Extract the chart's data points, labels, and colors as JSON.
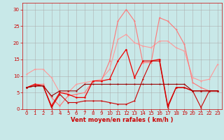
{
  "background_color": "#c8e8e8",
  "grid_color": "#aaaaaa",
  "xlabel": "Vent moyen/en rafales ( km/h )",
  "xlabel_color": "#cc0000",
  "xlabel_fontsize": 6,
  "tick_color": "#cc0000",
  "tick_fontsize": 5,
  "ylim": [
    0,
    32
  ],
  "xlim": [
    -0.5,
    23.5
  ],
  "yticks": [
    0,
    5,
    10,
    15,
    20,
    25,
    30
  ],
  "xticks": [
    0,
    1,
    2,
    3,
    4,
    5,
    6,
    7,
    8,
    9,
    10,
    11,
    12,
    13,
    14,
    15,
    16,
    17,
    18,
    19,
    20,
    21,
    22,
    23
  ],
  "series": [
    {
      "color": "#ff9999",
      "linewidth": 0.8,
      "markersize": 1.5,
      "data_x": [
        0,
        1,
        2,
        3,
        4,
        5,
        6,
        7,
        8,
        9,
        10,
        11,
        12,
        13,
        14,
        15,
        16,
        17,
        18,
        19,
        20,
        21,
        22,
        23
      ],
      "data_y": [
        10.5,
        12.0,
        12.0,
        9.5,
        5.0,
        5.0,
        7.5,
        8.0,
        8.5,
        9.0,
        12.0,
        21.0,
        22.5,
        20.0,
        19.0,
        18.5,
        20.5,
        20.5,
        18.5,
        17.5,
        9.5,
        8.5,
        9.0,
        13.5
      ]
    },
    {
      "color": "#ff7777",
      "linewidth": 0.8,
      "markersize": 1.5,
      "data_x": [
        0,
        1,
        2,
        3,
        4,
        5,
        6,
        7,
        8,
        9,
        10,
        11,
        12,
        13,
        14,
        15,
        16,
        17,
        18,
        19,
        20,
        21,
        22,
        23
      ],
      "data_y": [
        6.5,
        7.5,
        7.5,
        3.5,
        1.0,
        4.0,
        4.5,
        5.0,
        8.5,
        8.5,
        14.5,
        26.5,
        30.0,
        26.5,
        14.0,
        14.0,
        27.5,
        26.5,
        24.0,
        19.5,
        8.0,
        6.5,
        5.5,
        5.5
      ]
    },
    {
      "color": "#ee0000",
      "linewidth": 0.9,
      "markersize": 1.8,
      "data_x": [
        0,
        1,
        2,
        3,
        4,
        5,
        6,
        7,
        8,
        9,
        10,
        11,
        12,
        13,
        14,
        15,
        16,
        17,
        18,
        19,
        20,
        21,
        22,
        23
      ],
      "data_y": [
        6.5,
        7.5,
        7.0,
        1.0,
        5.0,
        4.5,
        3.5,
        3.5,
        8.5,
        8.5,
        9.0,
        14.5,
        18.0,
        9.5,
        14.5,
        14.5,
        15.0,
        1.0,
        6.5,
        6.5,
        5.5,
        5.5,
        5.5,
        5.5
      ]
    },
    {
      "color": "#cc0000",
      "linewidth": 0.8,
      "markersize": 1.5,
      "data_x": [
        0,
        1,
        2,
        3,
        4,
        5,
        6,
        7,
        8,
        9,
        10,
        11,
        12,
        13,
        14,
        15,
        16,
        17,
        18,
        19,
        20,
        21,
        22,
        23
      ],
      "data_y": [
        6.5,
        7.0,
        7.0,
        0.5,
        4.5,
        2.0,
        2.0,
        2.5,
        2.5,
        2.5,
        2.0,
        1.5,
        1.5,
        2.5,
        9.0,
        14.5,
        14.5,
        0.5,
        6.5,
        6.5,
        5.5,
        0.5,
        5.5,
        5.5
      ]
    },
    {
      "color": "#990000",
      "linewidth": 0.8,
      "markersize": 1.5,
      "data_x": [
        0,
        1,
        2,
        3,
        4,
        5,
        6,
        7,
        8,
        9,
        10,
        11,
        12,
        13,
        14,
        15,
        16,
        17,
        18,
        19,
        20,
        21,
        22,
        23
      ],
      "data_y": [
        6.5,
        7.0,
        7.0,
        4.0,
        5.5,
        5.5,
        5.5,
        7.5,
        7.5,
        7.5,
        7.5,
        7.5,
        7.5,
        7.5,
        7.5,
        7.5,
        7.5,
        7.5,
        7.5,
        7.5,
        5.5,
        5.5,
        5.5,
        5.5
      ]
    }
  ]
}
